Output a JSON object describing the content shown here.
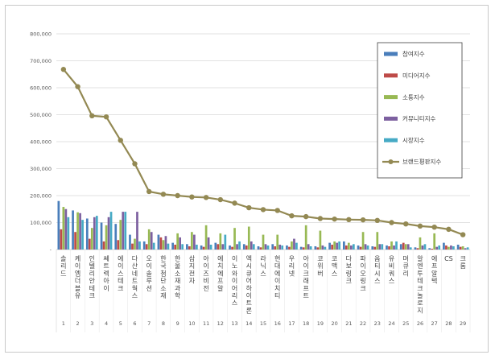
{
  "chart_data": {
    "type": "bar",
    "title": "",
    "xlabel": "",
    "ylabel": "",
    "ylim": [
      0,
      800000
    ],
    "y_ticks": [
      "-",
      "100,000",
      "200,000",
      "300,000",
      "400,000",
      "500,000",
      "600,000",
      "700,000",
      "800,000"
    ],
    "grid": true,
    "legend_position": "top-right",
    "categories": [
      "솔리드",
      "케이엠더블유",
      "인텔리안테크",
      "쎄트렉아이",
      "에이스테크",
      "다산네트웍스",
      "오이솔루션",
      "한국첨단소재",
      "한울소재과학",
      "삼지전자",
      "아이즈비전",
      "에치에프알",
      "이노와이어리스",
      "엑시큐어하이트론",
      "라닉스",
      "현대에이치티",
      "우리넷",
      "아이크래프트",
      "코위버",
      "코맥스",
      "다보링크",
      "파이오링크",
      "옵티시스",
      "유비쿼스",
      "머큐리",
      "알엔투테크놀로지",
      "에프알텍",
      "CS",
      "크롬"
    ],
    "x_numbers": [
      "1",
      "2",
      "3",
      "4",
      "5",
      "6",
      "7",
      "8",
      "9",
      "10",
      "11",
      "12",
      "13",
      "14",
      "15",
      "16",
      "17",
      "18",
      "19",
      "20",
      "21",
      "22",
      "23",
      "24",
      "25",
      "26",
      "27",
      "28",
      "29"
    ],
    "series": [
      {
        "name": "참여지수",
        "type": "bar",
        "color": "#4a7ebb",
        "values": [
          180000,
          145000,
          115000,
          100000,
          95000,
          55000,
          30000,
          55000,
          25000,
          20000,
          15000,
          25000,
          15000,
          20000,
          12000,
          20000,
          15000,
          10000,
          12000,
          25000,
          30000,
          15000,
          12000,
          15000,
          20000,
          8000,
          5000,
          25000,
          18000
        ]
      },
      {
        "name": "미디어지수",
        "type": "bar",
        "color": "#be4b48",
        "values": [
          75000,
          65000,
          40000,
          30000,
          35000,
          22000,
          20000,
          45000,
          18000,
          12000,
          10000,
          20000,
          10000,
          15000,
          8000,
          12000,
          10000,
          8000,
          8000,
          18000,
          15000,
          10000,
          10000,
          12000,
          25000,
          5000,
          3000,
          15000,
          10000
        ]
      },
      {
        "name": "소통지수",
        "type": "bar",
        "color": "#98b954",
        "values": [
          158000,
          138000,
          80000,
          90000,
          110000,
          40000,
          75000,
          35000,
          60000,
          65000,
          90000,
          60000,
          80000,
          85000,
          55000,
          55000,
          30000,
          90000,
          70000,
          30000,
          25000,
          65000,
          65000,
          30000,
          20000,
          45000,
          60000,
          10000,
          12000
        ]
      },
      {
        "name": "커뮤니티지수",
        "type": "bar",
        "color": "#7d60a0",
        "values": [
          150000,
          135000,
          120000,
          120000,
          140000,
          140000,
          65000,
          50000,
          45000,
          55000,
          45000,
          20000,
          20000,
          30000,
          20000,
          18000,
          40000,
          20000,
          15000,
          25000,
          15000,
          20000,
          20000,
          15000,
          20000,
          15000,
          10000,
          15000,
          5000
        ]
      },
      {
        "name": "시장지수",
        "type": "bar",
        "color": "#46aac5",
        "values": [
          120000,
          110000,
          125000,
          140000,
          140000,
          30000,
          25000,
          22000,
          20000,
          18000,
          18000,
          55000,
          30000,
          20000,
          15000,
          15000,
          25000,
          12000,
          10000,
          30000,
          20000,
          15000,
          20000,
          30000,
          8000,
          20000,
          15000,
          12000,
          8000
        ]
      },
      {
        "name": "브랜드평판지수",
        "type": "line",
        "color": "#938953",
        "values": [
          668000,
          604000,
          496000,
          492000,
          405000,
          318000,
          215000,
          205000,
          200000,
          195000,
          193000,
          185000,
          172000,
          155000,
          148000,
          145000,
          125000,
          122000,
          115000,
          113000,
          111000,
          110000,
          108000,
          100000,
          95000,
          87000,
          83000,
          75000,
          55000
        ]
      }
    ]
  }
}
